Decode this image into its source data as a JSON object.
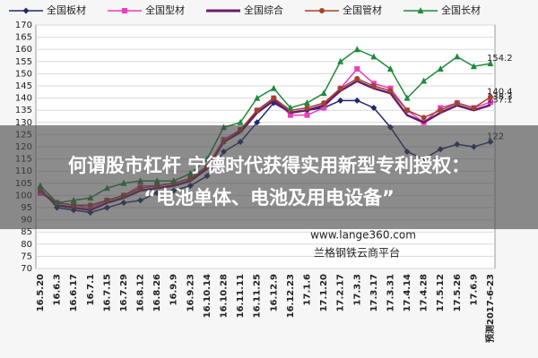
{
  "chart_data": {
    "type": "line",
    "categories": [
      "16.5.20",
      "16.6.3",
      "16.6.17",
      "16.7.1",
      "16.7.15",
      "16.7.29",
      "16.8.12",
      "16.8.26",
      "16.9.9",
      "16.9.23",
      "16.10.14",
      "16.10.28",
      "16.11.11",
      "16.11.25",
      "16.12.9",
      "16.12.23",
      "17.1.6",
      "17.1.20",
      "17.2.17",
      "17.3.3",
      "17.3.17",
      "17.3.31",
      "17.4.14",
      "17.4.28",
      "17.5.12",
      "17.5.26",
      "17.6.9",
      "预测2017-6-23"
    ],
    "series": [
      {
        "name": "全国板材",
        "color": "#1f2a6b",
        "marker": "diamond",
        "values": [
          103,
          95,
          94,
          93,
          95,
          97,
          98,
          101,
          102,
          104,
          108,
          118,
          122,
          130,
          138,
          134,
          135,
          136,
          139,
          139,
          136,
          128,
          118,
          115,
          119,
          121,
          120,
          122
        ]
      },
      {
        "name": "全国型材",
        "color": "#e83fbf",
        "marker": "square",
        "values": [
          101,
          97,
          96,
          95,
          98,
          100,
          104,
          104,
          105,
          107,
          112,
          123,
          127,
          135,
          140,
          133,
          133,
          136,
          144,
          152,
          146,
          144,
          135,
          130,
          136,
          138,
          136,
          138.3
        ]
      },
      {
        "name": "全国综合",
        "color": "#6a1b6a",
        "marker": "none",
        "values": [
          102,
          96,
          95,
          94,
          97,
          99,
          102,
          103,
          104,
          106,
          111,
          122,
          126,
          134,
          139,
          134,
          135,
          137,
          143,
          147,
          144,
          142,
          133,
          130,
          134,
          137,
          135,
          137.1
        ]
      },
      {
        "name": "全国管材",
        "color": "#a0442a",
        "marker": "circle",
        "values": [
          102,
          97,
          96,
          96,
          98,
          100,
          103,
          104,
          105,
          107,
          112,
          122,
          127,
          135,
          140,
          135,
          136,
          138,
          144,
          148,
          145,
          143,
          135,
          132,
          135,
          138,
          136,
          140.4
        ]
      },
      {
        "name": "全国长材",
        "color": "#1f8a3c",
        "marker": "triangle",
        "values": [
          104,
          97,
          98,
          99,
          103,
          105,
          106,
          106,
          106,
          109,
          115,
          128,
          130,
          140,
          144,
          136,
          138,
          142,
          155,
          160,
          157,
          152,
          140,
          147,
          152,
          157,
          153,
          154.2
        ]
      }
    ],
    "ylim": [
      70,
      170
    ],
    "yticks": [
      70,
      75,
      80,
      85,
      90,
      95,
      100,
      105,
      110,
      115,
      120,
      125,
      130,
      135,
      140,
      145,
      150,
      155,
      160,
      165,
      170
    ],
    "grid": true,
    "overlay_title": [
      "何谓股市杠杆 宁德时代获得实用新型专利授权：",
      "“电池单体、电池及用电设备”"
    ],
    "watermark": [
      "www.lange360.com",
      "兰格钢铁云商平台"
    ]
  }
}
